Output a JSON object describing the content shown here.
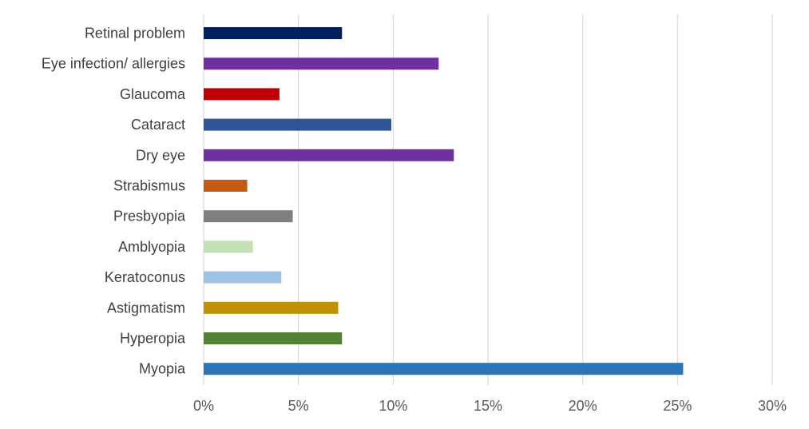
{
  "chart_data": {
    "type": "bar",
    "orientation": "horizontal",
    "title": "",
    "xlabel": "",
    "ylabel": "",
    "categories": [
      "Retinal problem",
      "Eye infection/ allergies",
      "Glaucoma",
      "Cataract",
      "Dry eye",
      "Strabismus",
      "Presbyopia",
      "Amblyopia",
      "Keratoconus",
      "Astigmatism",
      "Hyperopia",
      "Myopia"
    ],
    "values": [
      7.3,
      12.4,
      4.0,
      9.9,
      13.2,
      2.3,
      4.7,
      2.6,
      4.1,
      7.1,
      7.3,
      25.3
    ],
    "colors": [
      "#002060",
      "#7030A0",
      "#C00000",
      "#2F5597",
      "#7030A0",
      "#C55A11",
      "#7F7F7F",
      "#C5E0B4",
      "#9DC3E6",
      "#BF9000",
      "#548235",
      "#2E75B6"
    ],
    "xlim": [
      0,
      30
    ],
    "ticks": [
      0,
      5,
      10,
      15,
      20,
      25,
      30
    ],
    "tick_labels": [
      "0%",
      "5%",
      "10%",
      "15%",
      "20%",
      "25%",
      "30%"
    ],
    "grid": true,
    "legend": "none"
  }
}
